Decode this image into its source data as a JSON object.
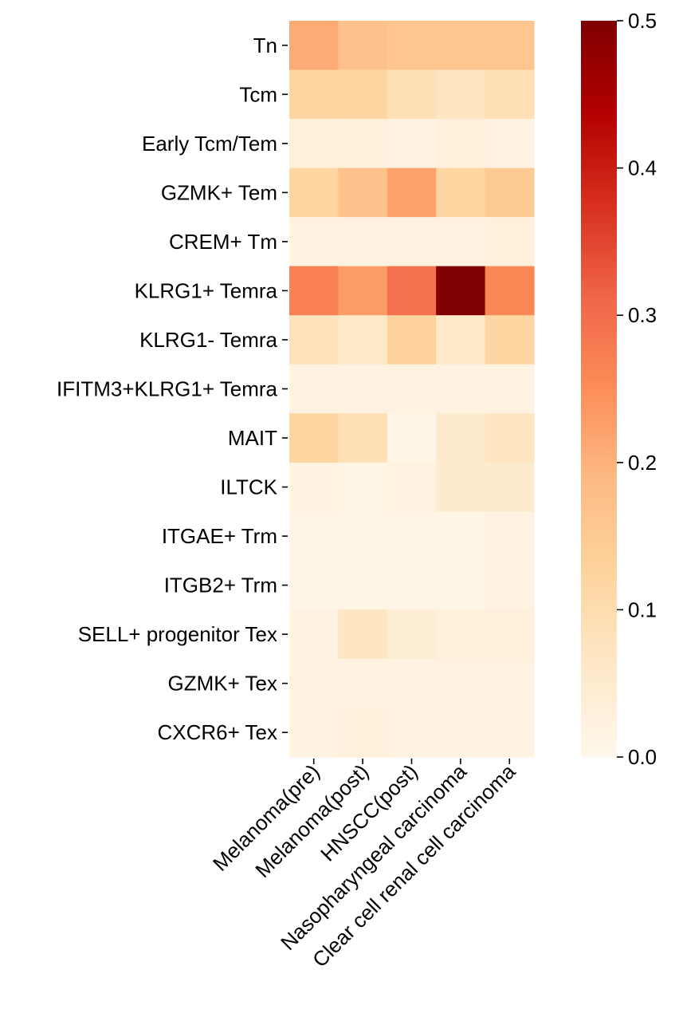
{
  "chart_data": {
    "type": "heatmap",
    "title": "",
    "xlabel": "",
    "ylabel": "",
    "columns": [
      "Melanoma(pre)",
      "Melanoma(post)",
      "HNSCC(post)",
      "Nasopharyngeal carcinoma",
      "Clear cell renal cell carcinoma"
    ],
    "rows": [
      "Tn",
      "Tcm",
      "Early Tcm/Tem",
      "GZMK+ Tem",
      "CREM+ Tm",
      "KLRG1+ Temra",
      "KLRG1- Temra",
      "IFITM3+KLRG1+ Temra",
      "MAIT",
      "ILTCK",
      "ITGAE+ Trm",
      "ITGB2+ Trm",
      "SELL+ progenitor Tex",
      "GZMK+ Tex",
      "CXCR6+ Tex"
    ],
    "values": [
      [
        0.21,
        0.17,
        0.16,
        0.16,
        0.16
      ],
      [
        0.12,
        0.12,
        0.09,
        0.07,
        0.09
      ],
      [
        0.03,
        0.03,
        0.02,
        0.03,
        0.02
      ],
      [
        0.12,
        0.17,
        0.22,
        0.12,
        0.15
      ],
      [
        0.02,
        0.02,
        0.02,
        0.02,
        0.03
      ],
      [
        0.27,
        0.23,
        0.29,
        0.5,
        0.26
      ],
      [
        0.08,
        0.06,
        0.13,
        0.06,
        0.12
      ],
      [
        0.02,
        0.02,
        0.02,
        0.02,
        0.02
      ],
      [
        0.12,
        0.09,
        0.01,
        0.05,
        0.07
      ],
      [
        0.02,
        0.01,
        0.02,
        0.05,
        0.05
      ],
      [
        0.01,
        0.01,
        0.01,
        0.01,
        0.02
      ],
      [
        0.01,
        0.01,
        0.01,
        0.01,
        0.02
      ],
      [
        0.02,
        0.07,
        0.04,
        0.03,
        0.03
      ],
      [
        0.02,
        0.02,
        0.02,
        0.02,
        0.02
      ],
      [
        0.02,
        0.03,
        0.02,
        0.02,
        0.02
      ]
    ],
    "colorbar": {
      "colormap": "OrRd",
      "vmin": 0.0,
      "vmax": 0.5,
      "ticks": [
        "0.0",
        "0.1",
        "0.2",
        "0.3",
        "0.4",
        "0.5"
      ]
    },
    "colorscale_stops": [
      "#fff7ec",
      "#fee8c8",
      "#fdd49e",
      "#fdbb84",
      "#fc8d59",
      "#ef6548",
      "#d7301f",
      "#b30000",
      "#7f0000"
    ]
  }
}
